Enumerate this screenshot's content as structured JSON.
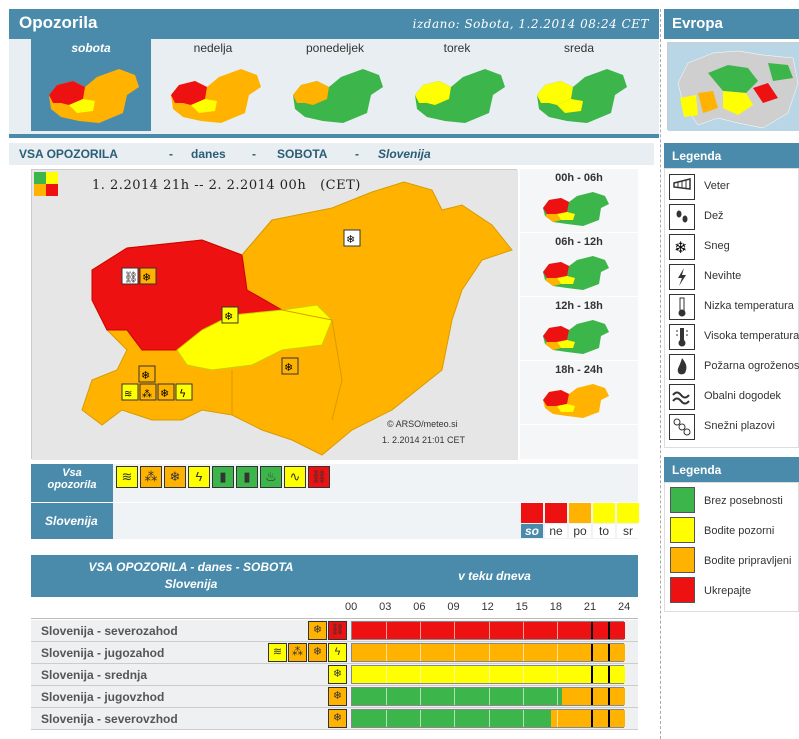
{
  "header": {
    "title": "Opozorila",
    "issued": "izdano: Sobota, 1.2.2014 08:24 CET",
    "europe": "Evropa"
  },
  "days": [
    {
      "label": "sobota",
      "active": true
    },
    {
      "label": "nedelja",
      "active": false
    },
    {
      "label": "ponedeljek",
      "active": false
    },
    {
      "label": "torek",
      "active": false
    },
    {
      "label": "sreda",
      "active": false
    }
  ],
  "vsa_title": {
    "p1": "VSA OPOZORILA",
    "d1": "-",
    "p2": "danes",
    "d2": "-",
    "p3": "SOBOTA",
    "d3": "-",
    "p4": "Slovenija"
  },
  "map": {
    "period": "1. 2.2014  21h  --  2. 2.2014  00h",
    "tz": "(CET)",
    "copyright": "© ARSO/meteo.si",
    "stamp": "1. 2.2014  21:01 CET"
  },
  "time_slots": [
    "00h - 06h",
    "06h - 12h",
    "12h - 18h",
    "18h - 24h"
  ],
  "legend_types": {
    "title": "Legenda",
    "items": [
      {
        "icon": "wind-icon",
        "label": "Veter"
      },
      {
        "icon": "rain-icon",
        "label": "Dež"
      },
      {
        "icon": "snow-icon",
        "label": "Sneg"
      },
      {
        "icon": "thunderstorm-icon",
        "label": "Nevihte"
      },
      {
        "icon": "low-temperature-icon",
        "label": "Nizka temperatura"
      },
      {
        "icon": "high-temperature-icon",
        "label": "Visoka temperatura"
      },
      {
        "icon": "fire-danger-icon",
        "label": "Požarna ogroženost"
      },
      {
        "icon": "coastal-event-icon",
        "label": "Obalni dogodek"
      },
      {
        "icon": "avalanche-icon",
        "label": "Snežni plazovi"
      }
    ]
  },
  "legend_levels": {
    "title": "Legenda",
    "items": [
      {
        "color": "#3cb54a",
        "label": "Brez posebnosti"
      },
      {
        "color": "#ffff00",
        "label": "Bodite pozorni"
      },
      {
        "color": "#ffb300",
        "label": "Bodite pripravljeni"
      },
      {
        "color": "#ee1111",
        "label": "Ukrepajte"
      }
    ]
  },
  "icon_row": {
    "label_line1": "Vsa",
    "label_line2": "opozorila",
    "icons": [
      {
        "name": "wind-icon",
        "color": "#ffff00"
      },
      {
        "name": "rain-icon",
        "color": "#ffb300"
      },
      {
        "name": "snow-icon",
        "color": "#ffb300"
      },
      {
        "name": "thunderstorm-icon",
        "color": "#ffff00"
      },
      {
        "name": "low-temperature-icon",
        "color": "#3cb54a"
      },
      {
        "name": "high-temperature-icon",
        "color": "#3cb54a"
      },
      {
        "name": "fire-danger-icon",
        "color": "#3cb54a"
      },
      {
        "name": "coastal-event-icon",
        "color": "#ffff00"
      },
      {
        "name": "avalanche-icon",
        "color": "#ee1111"
      }
    ]
  },
  "slovenia_row": {
    "label": "Slovenija",
    "days": [
      {
        "label": "so",
        "color": "#ee1111",
        "active": true
      },
      {
        "label": "ne",
        "color": "#ee1111",
        "active": false
      },
      {
        "label": "po",
        "color": "#ffb300",
        "active": false
      },
      {
        "label": "to",
        "color": "#ffff00",
        "active": false
      },
      {
        "label": "sr",
        "color": "#ffff00",
        "active": false
      }
    ]
  },
  "table": {
    "title_line1": "VSA OPOZORILA - danes - SOBOTA",
    "title_line2": "Slovenija",
    "period_label": "v teku dneva",
    "hours": [
      "00",
      "03",
      "06",
      "09",
      "12",
      "15",
      "18",
      "21",
      "24"
    ],
    "now_hours": [
      21,
      22.5
    ],
    "rows": [
      {
        "name": "Slovenija - severozahod",
        "icons": [
          "#ffb300",
          "#ee1111"
        ],
        "icon_names": [
          "snow-icon",
          "avalanche-icon"
        ],
        "segments": [
          {
            "from": 0,
            "to": 24,
            "color": "#ee1111"
          }
        ]
      },
      {
        "name": "Slovenija - jugozahod",
        "icons": [
          "#ffff00",
          "#ffb300",
          "#ffb300",
          "#ffff00"
        ],
        "icon_names": [
          "wind-icon",
          "rain-icon",
          "snow-icon",
          "thunderstorm-icon"
        ],
        "segments": [
          {
            "from": 0,
            "to": 24,
            "color": "#ffb300"
          }
        ]
      },
      {
        "name": "Slovenija - srednja",
        "icons": [
          "#ffff00"
        ],
        "icon_names": [
          "snow-icon"
        ],
        "segments": [
          {
            "from": 0,
            "to": 24,
            "color": "#ffff00"
          }
        ]
      },
      {
        "name": "Slovenija - jugovzhod",
        "icons": [
          "#ffb300"
        ],
        "icon_names": [
          "snow-icon"
        ],
        "segments": [
          {
            "from": 0,
            "to": 18.5,
            "color": "#3cb54a"
          },
          {
            "from": 18.5,
            "to": 24,
            "color": "#ffb300"
          }
        ]
      },
      {
        "name": "Slovenija - severovzhod",
        "icons": [
          "#ffb300"
        ],
        "icon_names": [
          "snow-icon"
        ],
        "segments": [
          {
            "from": 0,
            "to": 17.5,
            "color": "#3cb54a"
          },
          {
            "from": 17.5,
            "to": 24,
            "color": "#ffb300"
          }
        ]
      }
    ]
  }
}
